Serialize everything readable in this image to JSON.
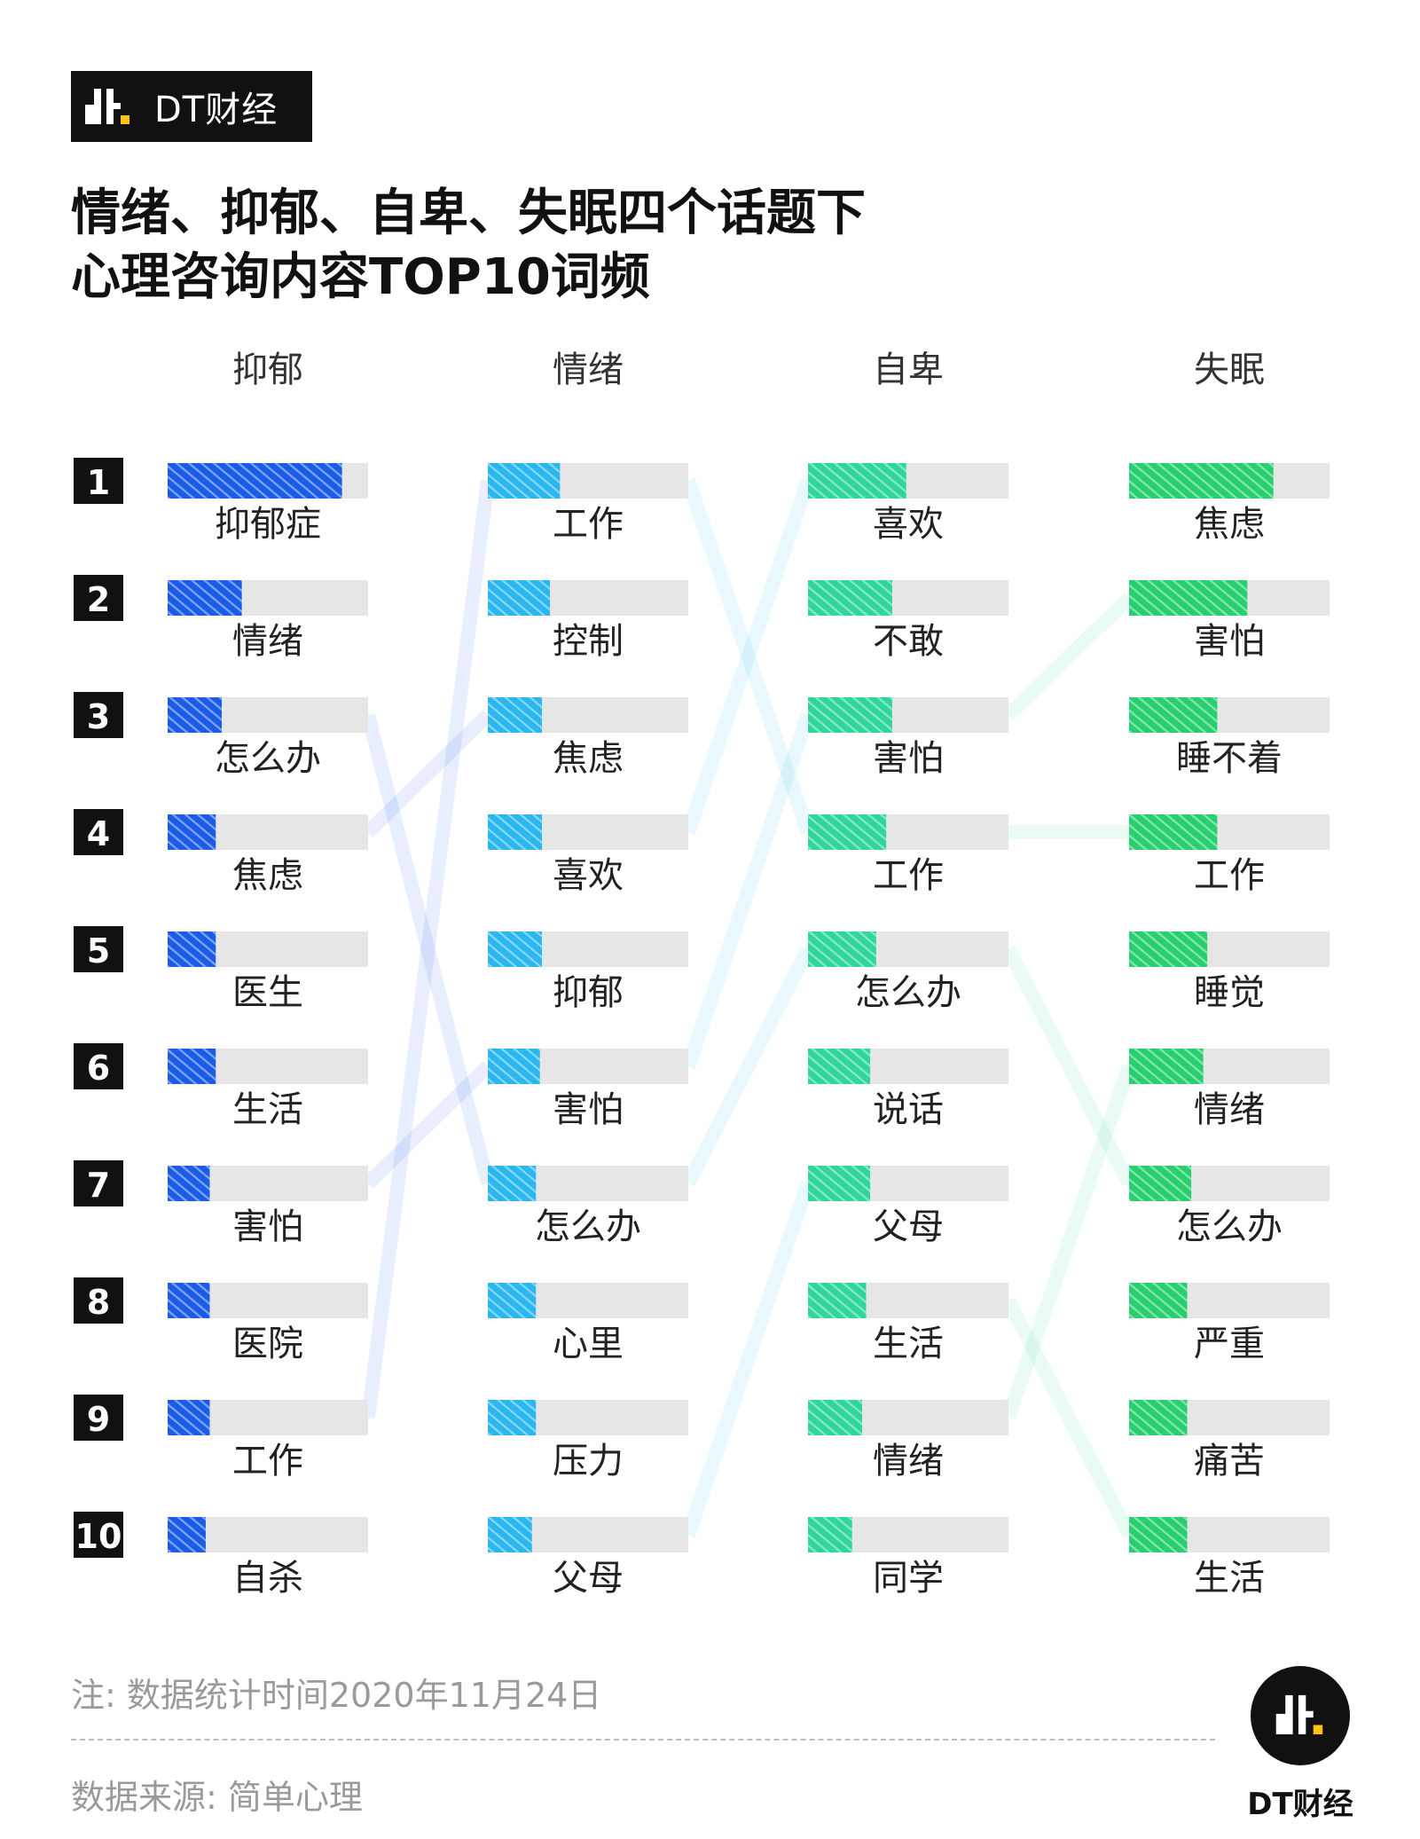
{
  "brand": {
    "name": "DT财经",
    "logo_icon": "dt-logo-icon"
  },
  "title": {
    "line1": "情绪、抑郁、自卑、失眠四个话题下",
    "line2": "心理咨询内容TOP10词频"
  },
  "colors": {
    "track": "#e6e6e6",
    "rank_box": "#111111",
    "columns": [
      "#1a5ce8",
      "#2ab6ee",
      "#2ed69a",
      "#28cf6e"
    ]
  },
  "chart_data": {
    "type": "bar",
    "title": "",
    "ranks": [
      "1",
      "2",
      "3",
      "4",
      "5",
      "6",
      "7",
      "8",
      "9",
      "10"
    ],
    "value_range": [
      0,
      1
    ],
    "columns": [
      {
        "name": "抑郁",
        "terms": [
          "抑郁症",
          "情绪",
          "怎么办",
          "焦虑",
          "医生",
          "生活",
          "害怕",
          "医院",
          "工作",
          "自杀"
        ],
        "values": [
          0.87,
          0.37,
          0.27,
          0.24,
          0.24,
          0.24,
          0.21,
          0.21,
          0.21,
          0.19
        ]
      },
      {
        "name": "情绪",
        "terms": [
          "工作",
          "控制",
          "焦虑",
          "喜欢",
          "抑郁",
          "害怕",
          "怎么办",
          "心里",
          "压力",
          "父母"
        ],
        "values": [
          0.36,
          0.31,
          0.27,
          0.27,
          0.27,
          0.26,
          0.24,
          0.24,
          0.24,
          0.22
        ]
      },
      {
        "name": "自卑",
        "terms": [
          "喜欢",
          "不敢",
          "害怕",
          "工作",
          "怎么办",
          "说话",
          "父母",
          "生活",
          "情绪",
          "同学"
        ],
        "values": [
          0.49,
          0.42,
          0.42,
          0.39,
          0.34,
          0.31,
          0.31,
          0.29,
          0.27,
          0.22
        ]
      },
      {
        "name": "失眠",
        "terms": [
          "焦虑",
          "害怕",
          "睡不着",
          "工作",
          "睡觉",
          "情绪",
          "怎么办",
          "严重",
          "痛苦",
          "生活"
        ],
        "values": [
          0.72,
          0.59,
          0.44,
          0.44,
          0.39,
          0.37,
          0.31,
          0.29,
          0.29,
          0.29
        ]
      }
    ]
  },
  "footer": {
    "note": "注: 数据统计时间2020年11月24日",
    "source": "数据来源: 简单心理"
  }
}
